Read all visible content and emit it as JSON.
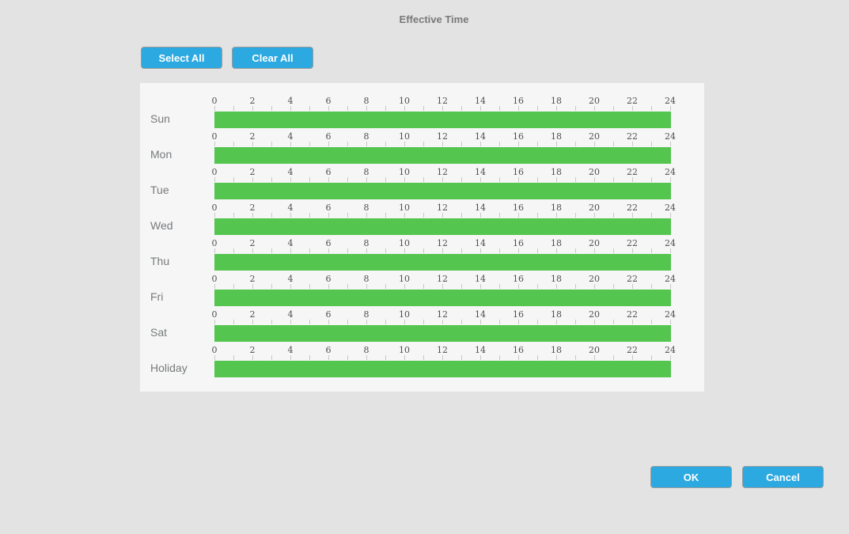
{
  "title": "Effective Time",
  "toolbar": {
    "select_all_label": "Select All",
    "clear_all_label": "Clear All"
  },
  "footer": {
    "ok_label": "OK",
    "cancel_label": "Cancel"
  },
  "colors": {
    "accent_blue": "#2ba9e0",
    "bar_green": "#54c54e",
    "panel_bg": "#f6f6f6",
    "page_bg": "#e3e3e3"
  },
  "schedule": {
    "hours_span": [
      0,
      24
    ],
    "hour_labels": [
      "0",
      "2",
      "4",
      "6",
      "8",
      "10",
      "12",
      "14",
      "16",
      "18",
      "20",
      "22",
      "24"
    ],
    "days": [
      {
        "label": "Sun",
        "bars": [
          {
            "start": 0,
            "end": 24
          }
        ]
      },
      {
        "label": "Mon",
        "bars": [
          {
            "start": 0,
            "end": 24
          }
        ]
      },
      {
        "label": "Tue",
        "bars": [
          {
            "start": 0,
            "end": 24
          }
        ]
      },
      {
        "label": "Wed",
        "bars": [
          {
            "start": 0,
            "end": 24
          }
        ]
      },
      {
        "label": "Thu",
        "bars": [
          {
            "start": 0,
            "end": 24
          }
        ]
      },
      {
        "label": "Fri",
        "bars": [
          {
            "start": 0,
            "end": 24
          }
        ]
      },
      {
        "label": "Sat",
        "bars": [
          {
            "start": 0,
            "end": 24
          }
        ]
      },
      {
        "label": "Holiday",
        "bars": [
          {
            "start": 0,
            "end": 24
          }
        ]
      }
    ]
  }
}
